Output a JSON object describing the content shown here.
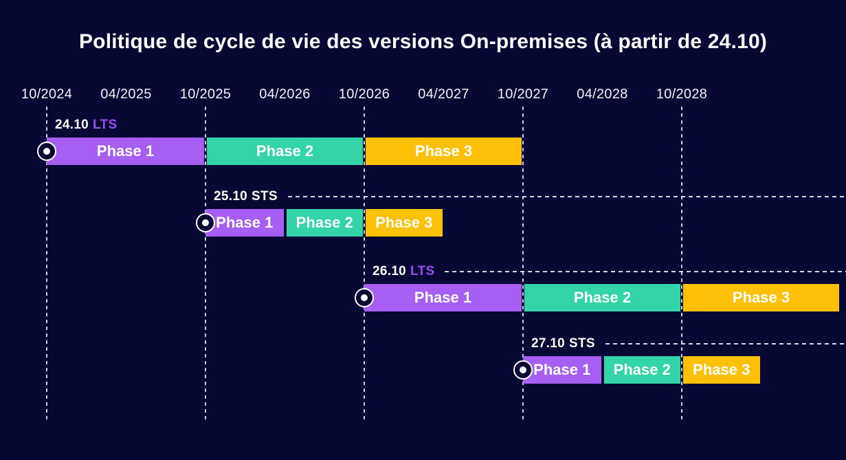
{
  "title": "Politique de cycle de vie des versions On-premises (à partir de 24.10)",
  "colors": {
    "background": "#080835",
    "phase1": "#a75ef3",
    "phase2": "#33d4a7",
    "phase3": "#ffc107",
    "lts_channel_text": "#9b4cf0",
    "sts_channel_text": "#ffffff",
    "text": "#ffffff",
    "dashed_lines": "#eef0ff"
  },
  "chart_data": {
    "type": "bar",
    "subtype": "gantt-release-lifecycle",
    "title": "Politique de cycle de vie des versions On-premises (à partir de 24.10)",
    "x_axis": {
      "unit": "half-year",
      "ticks": [
        "10/2024",
        "04/2025",
        "10/2025",
        "04/2026",
        "10/2026",
        "04/2027",
        "10/2027",
        "04/2028",
        "10/2028"
      ],
      "gridlines": [
        "10/2024",
        "10/2025",
        "10/2026",
        "10/2027",
        "10/2028"
      ],
      "range": [
        "10/2024",
        "10/2029"
      ],
      "grid": true
    },
    "legend": "none",
    "series": [
      {
        "name": "24.10 LTS",
        "version": "24.10",
        "channel": "LTS",
        "start": "10/2024",
        "guide_line": false,
        "phases": [
          {
            "label": "Phase 1",
            "start": "10/2024",
            "end": "10/2025",
            "color_key": "phase1"
          },
          {
            "label": "Phase 2",
            "start": "10/2025",
            "end": "10/2026",
            "color_key": "phase2"
          },
          {
            "label": "Phase 3",
            "start": "10/2026",
            "end": "10/2027",
            "color_key": "phase3"
          }
        ]
      },
      {
        "name": "25.10 STS",
        "version": "25.10",
        "channel": "STS",
        "start": "10/2025",
        "guide_line": true,
        "phases": [
          {
            "label": "Phase 1",
            "start": "10/2025",
            "end": "04/2026",
            "color_key": "phase1"
          },
          {
            "label": "Phase 2",
            "start": "04/2026",
            "end": "10/2026",
            "color_key": "phase2"
          },
          {
            "label": "Phase 3",
            "start": "10/2026",
            "end": "04/2027",
            "color_key": "phase3"
          }
        ]
      },
      {
        "name": "26.10 LTS",
        "version": "26.10",
        "channel": "LTS",
        "start": "10/2026",
        "guide_line": true,
        "phases": [
          {
            "label": "Phase 1",
            "start": "10/2026",
            "end": "10/2027",
            "color_key": "phase1"
          },
          {
            "label": "Phase 2",
            "start": "10/2027",
            "end": "10/2028",
            "color_key": "phase2"
          },
          {
            "label": "Phase 3",
            "start": "10/2028",
            "end": "10/2029",
            "color_key": "phase3"
          }
        ]
      },
      {
        "name": "27.10 STS",
        "version": "27.10",
        "channel": "STS",
        "start": "10/2027",
        "guide_line": true,
        "phases": [
          {
            "label": "Phase 1",
            "start": "10/2027",
            "end": "04/2028",
            "color_key": "phase1"
          },
          {
            "label": "Phase 2",
            "start": "04/2028",
            "end": "10/2028",
            "color_key": "phase2"
          },
          {
            "label": "Phase 3",
            "start": "10/2028",
            "end": "04/2029",
            "color_key": "phase3"
          }
        ]
      }
    ]
  }
}
